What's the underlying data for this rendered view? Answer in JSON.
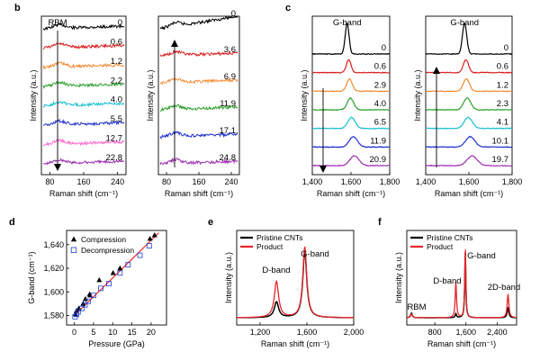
{
  "chart_data": [
    {
      "id": "b1",
      "panel_label": "b",
      "type": "line",
      "xlim": [
        60,
        260
      ],
      "xticks": [
        "80",
        "160",
        "240"
      ],
      "xlabel": "Raman shift (cm⁻¹)",
      "ylabel": "Intensity (a.u.)",
      "annotation": "RBM",
      "arrow": "down",
      "series": [
        {
          "label": "0",
          "color": "#000000"
        },
        {
          "label": "0.6",
          "color": "#d81e1e"
        },
        {
          "label": "1.2",
          "color": "#f28a30"
        },
        {
          "label": "2.2",
          "color": "#2ca02c"
        },
        {
          "label": "4.0",
          "color": "#17bfd0"
        },
        {
          "label": "5.5",
          "color": "#1f2fd0"
        },
        {
          "label": "12.7",
          "color": "#ff66cc"
        },
        {
          "label": "22.8",
          "color": "#9b2fae"
        }
      ]
    },
    {
      "id": "b2",
      "type": "line",
      "xlim": [
        60,
        260
      ],
      "xticks": [
        "80",
        "160",
        "240"
      ],
      "xlabel": "Raman shift (cm⁻¹)",
      "ylabel": "Intensity (a.u.)",
      "arrow": "up",
      "series": [
        {
          "label": "0",
          "color": "#000000"
        },
        {
          "label": "3.6",
          "color": "#d81e1e"
        },
        {
          "label": "6.9",
          "color": "#f28a30"
        },
        {
          "label": "11.9",
          "color": "#2ca02c"
        },
        {
          "label": "17.1",
          "color": "#1f2fd0"
        },
        {
          "label": "24.8",
          "color": "#9b2fae"
        }
      ]
    },
    {
      "id": "c1",
      "panel_label": "c",
      "type": "line",
      "xlim": [
        1400,
        1800
      ],
      "xticks": [
        "1,400",
        "1,600",
        "1,800"
      ],
      "xlabel": "Raman shift (cm⁻¹)",
      "ylabel": "Intensity (a.u.)",
      "annotation": "G-band",
      "arrow": "down",
      "peak_positions": [
        1580,
        1588,
        1592,
        1597,
        1603,
        1612,
        1618
      ],
      "series": [
        {
          "label": "0",
          "color": "#000000"
        },
        {
          "label": "0.6",
          "color": "#d81e1e"
        },
        {
          "label": "2.9",
          "color": "#f28a30"
        },
        {
          "label": "4.0",
          "color": "#2ca02c"
        },
        {
          "label": "6.5",
          "color": "#17bfd0"
        },
        {
          "label": "11.9",
          "color": "#1f2fd0"
        },
        {
          "label": "20.9",
          "color": "#9b2fae"
        }
      ]
    },
    {
      "id": "c2",
      "type": "line",
      "xlim": [
        1400,
        1800
      ],
      "xticks": [
        "1,400",
        "1,600",
        "1,800"
      ],
      "xlabel": "Raman shift (cm⁻¹)",
      "ylabel": "Intensity (a.u.)",
      "annotation": "G-band",
      "arrow": "up",
      "peak_positions": [
        1580,
        1586,
        1588,
        1592,
        1597,
        1606,
        1615
      ],
      "series": [
        {
          "label": "0",
          "color": "#000000"
        },
        {
          "label": "0.6",
          "color": "#d81e1e"
        },
        {
          "label": "1.2",
          "color": "#f28a30"
        },
        {
          "label": "2.3",
          "color": "#2ca02c"
        },
        {
          "label": "4.1",
          "color": "#17bfd0"
        },
        {
          "label": "10.1",
          "color": "#1f2fd0"
        },
        {
          "label": "19.7",
          "color": "#9b2fae"
        }
      ]
    },
    {
      "id": "d",
      "panel_label": "d",
      "type": "scatter",
      "xlabel": "Pressure (GPa)",
      "ylabel": "G-band (cm⁻¹)",
      "xlim": [
        -2,
        24
      ],
      "ylim": [
        1572,
        1652
      ],
      "xticks": [
        0,
        5,
        10,
        15,
        20
      ],
      "yticks": [
        1580,
        1600,
        1620,
        1640
      ],
      "ytick_labels": [
        "1,580",
        "1,600",
        "1,620",
        "1,640"
      ],
      "fit_line": [
        [
          0,
          1580
        ],
        [
          22,
          1650
        ]
      ],
      "series": [
        {
          "name": "Compression",
          "marker": "triangle",
          "x": [
            0.3,
            0.6,
            1.2,
            2.3,
            2.9,
            4.0,
            4.1,
            6.5,
            10.1,
            11.9,
            19.7,
            20.9
          ],
          "y": [
            1581,
            1584,
            1586,
            1590,
            1594,
            1598,
            1597,
            1610,
            1616,
            1620,
            1645,
            1648
          ]
        },
        {
          "name": "Decompression",
          "marker": "square",
          "x": [
            0.2,
            0.6,
            1.0,
            2.0,
            2.8,
            3.6,
            5.0,
            6.9,
            9.0,
            11.9,
            14.0,
            17.1,
            19.5
          ],
          "y": [
            1579,
            1581,
            1583,
            1586,
            1589,
            1592,
            1597,
            1603,
            1607,
            1616,
            1623,
            1631,
            1639
          ]
        }
      ]
    },
    {
      "id": "e",
      "panel_label": "e",
      "type": "line",
      "xlabel": "Raman shift (cm⁻¹)",
      "ylabel": "Intensity (a.u.)",
      "xlim": [
        1000,
        2000
      ],
      "xticks": [
        1200,
        1600,
        2000
      ],
      "xtick_labels": [
        "1,200",
        "1,600",
        "2,000"
      ],
      "annotations": [
        "D-band",
        "G-band"
      ],
      "series": [
        {
          "name": "Pristine CNTs",
          "color": "#000000",
          "peaks": [
            {
              "x": 1340,
              "h": 0.2,
              "w": 22
            },
            {
              "x": 1582,
              "h": 0.86,
              "w": 20
            }
          ]
        },
        {
          "name": "Product",
          "color": "#e8262a",
          "peaks": [
            {
              "x": 1340,
              "h": 0.46,
              "w": 22
            },
            {
              "x": 1582,
              "h": 0.9,
              "w": 20
            }
          ]
        }
      ]
    },
    {
      "id": "f",
      "panel_label": "f",
      "type": "line",
      "xlabel": "Raman shift (cm⁻¹)",
      "ylabel": "Intensity (a.u.)",
      "xlim": [
        80,
        2900
      ],
      "xticks": [
        800,
        1600,
        2400
      ],
      "xtick_labels": [
        "800",
        "1,600",
        "2,400"
      ],
      "annotations": [
        "RBM",
        "D-band",
        "G-band",
        "2D-band"
      ],
      "series": [
        {
          "name": "Pristine CNTs",
          "color": "#000000",
          "peaks": [
            {
              "x": 200,
              "h": 0.06,
              "w": 25
            },
            {
              "x": 1340,
              "h": 0.05,
              "w": 20
            },
            {
              "x": 1582,
              "h": 0.85,
              "w": 16
            },
            {
              "x": 2680,
              "h": 0.13,
              "w": 25
            }
          ]
        },
        {
          "name": "Product",
          "color": "#e8262a",
          "peaks": [
            {
              "x": 200,
              "h": 0.05,
              "w": 25
            },
            {
              "x": 1340,
              "h": 0.46,
              "w": 20
            },
            {
              "x": 1582,
              "h": 0.88,
              "w": 16
            },
            {
              "x": 2680,
              "h": 0.3,
              "w": 25
            }
          ]
        }
      ]
    }
  ]
}
